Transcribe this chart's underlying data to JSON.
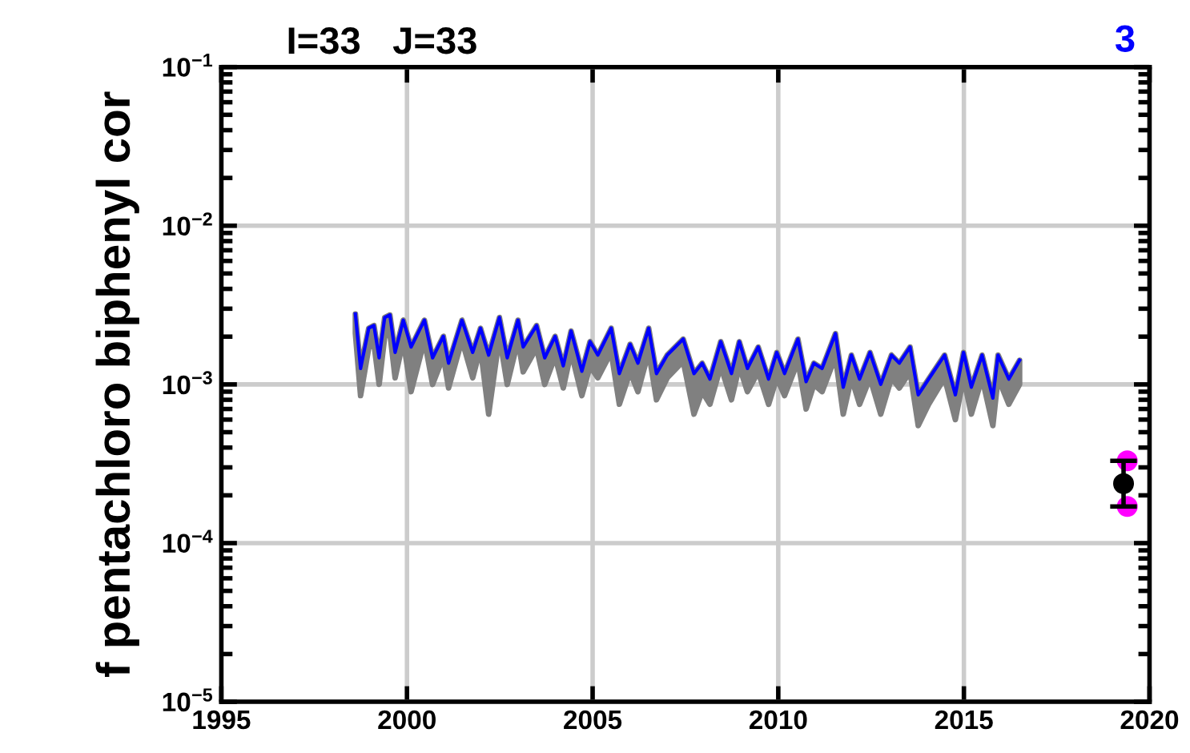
{
  "chart_data": {
    "type": "line",
    "title": "I=33   J=33",
    "ylabel": "f pentachloro biphenyl cor",
    "annotations": [
      "3"
    ],
    "log": "y",
    "grid": true,
    "legend": false,
    "marker": "none",
    "line_style": "solid",
    "xlim": [
      1995,
      2020
    ],
    "xticks": [
      1995,
      2000,
      2005,
      2010,
      2015,
      2020
    ],
    "ylim": [
      1e-05,
      0.1
    ],
    "yticks": [
      {
        "value": 1e-05,
        "label": "10$^{−5}$"
      },
      {
        "value": 0.0001,
        "label": "10$^{−4}$"
      },
      {
        "value": 0.001,
        "label": "10$^{−3}$"
      },
      {
        "value": 0.01,
        "label": "10$^{−2}$"
      },
      {
        "value": 0.1,
        "label": "10$^{−1}$"
      }
    ],
    "series": [
      {
        "color": "#0000ff",
        "x": [
          1998.61,
          1998.75,
          1998.97,
          1999.11,
          1999.25,
          1999.4,
          1999.54,
          1999.68,
          1999.9,
          2000.11,
          2000.47,
          2000.69,
          2000.98,
          2001.12,
          2001.48,
          2001.77,
          2001.98,
          2002.2,
          2002.49,
          2002.7,
          2002.99,
          2003.13,
          2003.49,
          2003.71,
          2003.99,
          2004.21,
          2004.42,
          2004.71,
          2004.93,
          2005.14,
          2005.5,
          2005.72,
          2006.01,
          2006.22,
          2006.51,
          2006.72,
          2007.01,
          2007.44,
          2007.73,
          2007.95,
          2008.16,
          2008.45,
          2008.74,
          2008.95,
          2009.17,
          2009.46,
          2009.74,
          2009.96,
          2010.17,
          2010.53,
          2010.75,
          2010.96,
          2011.18,
          2011.54,
          2011.75,
          2011.97,
          2012.19,
          2012.47,
          2012.76,
          2013.05,
          2013.26,
          2013.55,
          2013.77,
          2014.05,
          2014.48,
          2014.77,
          2014.99,
          2015.2,
          2015.49,
          2015.78,
          2015.92,
          2016.21,
          2016.5
        ],
        "values": [
          0.00278,
          0.00126,
          0.00226,
          0.00235,
          0.00147,
          0.00264,
          0.00274,
          0.00159,
          0.00254,
          0.00172,
          0.00254,
          0.00147,
          0.00201,
          0.00136,
          0.00254,
          0.00159,
          0.00226,
          0.00153,
          0.00264,
          0.00147,
          0.00254,
          0.00172,
          0.00235,
          0.00147,
          0.00201,
          0.00131,
          0.00217,
          0.00121,
          0.00186,
          0.00153,
          0.00226,
          0.00117,
          0.00179,
          0.00136,
          0.00226,
          0.00117,
          0.00153,
          0.00193,
          0.00117,
          0.00136,
          0.00108,
          0.00186,
          0.00117,
          0.00186,
          0.00126,
          0.00172,
          0.00108,
          0.00159,
          0.00117,
          0.00193,
          0.00104,
          0.00136,
          0.00126,
          0.00209,
          0.00096,
          0.00153,
          0.00108,
          0.00159,
          0.001,
          0.00153,
          0.00136,
          0.00172,
          0.00086,
          0.00108,
          0.00153,
          0.00086,
          0.00159,
          0.00096,
          0.00153,
          0.00082,
          0.00153,
          0.00108,
          0.00142
        ],
        "lower": [
          0.0021,
          0.00085,
          0.0017,
          0.0018,
          0.001,
          0.002,
          0.0021,
          0.0011,
          0.0019,
          0.0009,
          0.0019,
          0.001,
          0.0015,
          0.00095,
          0.0019,
          0.0011,
          0.0017,
          0.00065,
          0.002,
          0.001,
          0.0019,
          0.0012,
          0.0017,
          0.001,
          0.0015,
          0.00095,
          0.0016,
          0.00085,
          0.0013,
          0.0011,
          0.0016,
          0.00075,
          0.0012,
          0.0009,
          0.0016,
          0.0008,
          0.0011,
          0.0014,
          0.00065,
          0.0009,
          0.00075,
          0.0013,
          0.0008,
          0.0013,
          0.0009,
          0.0012,
          0.00075,
          0.0011,
          0.00085,
          0.0014,
          0.0007,
          0.001,
          0.0009,
          0.0015,
          0.00065,
          0.0011,
          0.00075,
          0.0011,
          0.00065,
          0.0011,
          0.00095,
          0.0012,
          0.00055,
          0.00075,
          0.0011,
          0.0006,
          0.0011,
          0.00065,
          0.0011,
          0.00055,
          0.0011,
          0.00075,
          0.001
        ],
        "upper": [
          0.00278,
          0.00126,
          0.00226,
          0.00235,
          0.00147,
          0.00264,
          0.00274,
          0.00159,
          0.00254,
          0.00172,
          0.00254,
          0.00147,
          0.00201,
          0.00136,
          0.00254,
          0.00159,
          0.00226,
          0.00153,
          0.00264,
          0.00147,
          0.00254,
          0.00172,
          0.00235,
          0.00147,
          0.00201,
          0.00131,
          0.00217,
          0.00121,
          0.00186,
          0.00153,
          0.00226,
          0.00117,
          0.00179,
          0.00136,
          0.00226,
          0.00117,
          0.00153,
          0.00193,
          0.00117,
          0.00136,
          0.00108,
          0.00186,
          0.00117,
          0.00186,
          0.00126,
          0.00172,
          0.00108,
          0.00159,
          0.00117,
          0.00193,
          0.00104,
          0.00136,
          0.00126,
          0.00209,
          0.00096,
          0.00153,
          0.00108,
          0.00159,
          0.001,
          0.00153,
          0.00136,
          0.00172,
          0.00086,
          0.00108,
          0.00153,
          0.00086,
          0.00159,
          0.00096,
          0.00153,
          0.00082,
          0.00153,
          0.00108,
          0.00142
        ]
      },
      {
        "type": "scatter",
        "color": "#ff00ff",
        "marker": "circle",
        "x": [
          2019.4,
          2019.4
        ],
        "values": [
          0.00033,
          0.00017
        ]
      },
      {
        "type": "scatter",
        "color": "#000000",
        "marker": "circle",
        "x": [
          2019.3
        ],
        "values": [
          0.000237
        ],
        "errors": [
          [
            0.00017,
            0.00033
          ]
        ]
      }
    ]
  }
}
